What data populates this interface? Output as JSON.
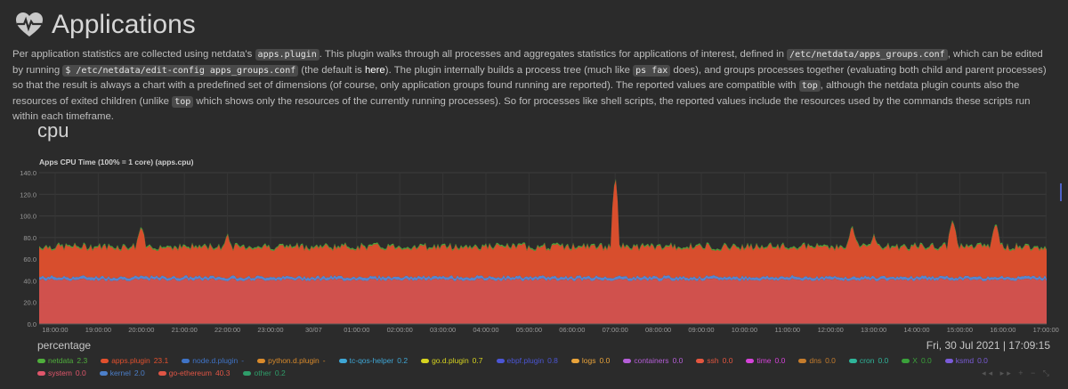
{
  "page": {
    "title": "Applications",
    "icon": "heartbeat-icon"
  },
  "description": {
    "s1": "Per application statistics are collected using netdata's ",
    "c1": "apps.plugin",
    "s2": ". This plugin walks through all processes and aggregates statistics for applications of interest, defined in ",
    "c2": "/etc/netdata/apps_groups.conf",
    "s3": ", which can be edited by running ",
    "c3": "$ /etc/netdata/edit-config apps_groups.conf",
    "s4": " (the default is ",
    "link": "here",
    "s5": "). The plugin internally builds a process tree (much like ",
    "c4": "ps fax",
    "s6": " does), and groups processes together (evaluating both child and parent processes) so that the result is always a chart with a predefined set of dimensions (of course, only application groups found running are reported). The reported values are compatible with ",
    "c5": "top",
    "s7": ", although the netdata plugin counts also the resources of exited children (unlike ",
    "c6": "top",
    "s8": " which shows only the resources of the currently running processes). So for processes like shell scripts, the reported values include the resources used by the commands these scripts run within each timeframe."
  },
  "section": {
    "title": "cpu"
  },
  "chart": {
    "title": "Apps CPU Time (100% = 1 core) (apps.cpu)",
    "units": "percentage",
    "timestamp": "Fri, 30 Jul 2021 | 17:09:15"
  },
  "chart_data": {
    "type": "area",
    "stacked": true,
    "title": "Apps CPU Time (100% = 1 core) (apps.cpu)",
    "ylabel": "percentage",
    "ylim": [
      0,
      140
    ],
    "yticks": [
      "140.0",
      "120.0",
      "100.0",
      "80.0",
      "60.0",
      "40.0",
      "20.0",
      "0.0"
    ],
    "xticks": [
      "18:00:00",
      "19:00:00",
      "20:00:00",
      "21:00:00",
      "22:00:00",
      "23:00:00",
      "30/07",
      "01:00:00",
      "02:00:00",
      "03:00:00",
      "04:00:00",
      "05:00:00",
      "06:00:00",
      "07:00:00",
      "08:00:00",
      "09:00:00",
      "10:00:00",
      "11:00:00",
      "12:00:00",
      "13:00:00",
      "14:00:00",
      "15:00:00",
      "16:00:00",
      "17:00:00"
    ],
    "grid": true,
    "series": [
      {
        "name": "go-ethereum",
        "color": "#d9534f",
        "approx_level": 40
      },
      {
        "name": "kernel",
        "color": "#5b8bd6",
        "approx_level": 2
      },
      {
        "name": "apps.plugin",
        "color": "#e2502d",
        "approx_level": 23
      },
      {
        "name": "netdata",
        "color": "#4fae3c",
        "approx_level": 2.3
      }
    ],
    "total_profile": {
      "base": 71,
      "spikes": [
        {
          "x": "20:00:00",
          "value": 90
        },
        {
          "x": "22:00:00",
          "value": 84
        },
        {
          "x": "07:00:00",
          "value": 140
        },
        {
          "x": "12:30:00",
          "value": 90
        },
        {
          "x": "13:00:00",
          "value": 83
        },
        {
          "x": "14:50:00",
          "value": 95
        },
        {
          "x": "15:50:00",
          "value": 93
        }
      ]
    }
  },
  "legend": [
    {
      "name": "netdata",
      "value": "2.3",
      "color": "#4fae3c"
    },
    {
      "name": "apps.plugin",
      "value": "23.1",
      "color": "#e2502d"
    },
    {
      "name": "node.d.plugin",
      "value": "-",
      "color": "#3f73c6"
    },
    {
      "name": "python.d.plugin",
      "value": "-",
      "color": "#d98a2b"
    },
    {
      "name": "tc-qos-helper",
      "value": "0.2",
      "color": "#3fa7d6"
    },
    {
      "name": "go.d.plugin",
      "value": "0.7",
      "color": "#d6d31f"
    },
    {
      "name": "ebpf.plugin",
      "value": "0.8",
      "color": "#4b55d4"
    },
    {
      "name": "logs",
      "value": "0.0",
      "color": "#e9a33a"
    },
    {
      "name": "containers",
      "value": "0.0",
      "color": "#b55ed8"
    },
    {
      "name": "ssh",
      "value": "0.0",
      "color": "#e4563f"
    },
    {
      "name": "time",
      "value": "0.0",
      "color": "#d543d9"
    },
    {
      "name": "dns",
      "value": "0.0",
      "color": "#c57c2c"
    },
    {
      "name": "cron",
      "value": "0.0",
      "color": "#2fb59a"
    },
    {
      "name": "X",
      "value": "0.0",
      "color": "#3aa13a"
    },
    {
      "name": "ksmd",
      "value": "0.0",
      "color": "#7a5bd8"
    },
    {
      "name": "system",
      "value": "0.0",
      "color": "#e0566b"
    },
    {
      "name": "kernel",
      "value": "2.0",
      "color": "#4c7fc9"
    },
    {
      "name": "go-ethereum",
      "value": "40.3",
      "color": "#e05545"
    },
    {
      "name": "other",
      "value": "0.2",
      "color": "#2f9e6a"
    }
  ],
  "controls": {
    "rewind": "◂◂",
    "forward": "▸▸",
    "zoom_in": "+",
    "zoom_out": "−",
    "resize": "⤡"
  }
}
